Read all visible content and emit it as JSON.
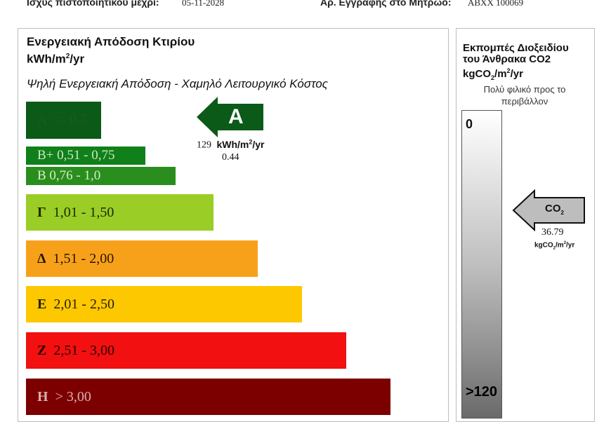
{
  "header": {
    "validity_label": "Ισχύς πιστοποιητικού μέχρι:",
    "validity_value": "05-11-2028",
    "registry_label": "Αρ. Εγγραφής στο Μητρώο:",
    "registry_value": "ABXX 100069"
  },
  "energy": {
    "title_line1": "Ενεργειακή Απόδοση Κτιρίου",
    "title_line2_prefix": "kWh/m",
    "title_line2_sup": "2",
    "title_line2_suffix": "/yr",
    "subtitle": "Ψηλή Ενεργειακή Απόδοση - Χαμηλό Λειτουργικό Κόστος",
    "bands": [
      {
        "letter": "",
        "text": "A <=  0.5",
        "color": "#0b5a18",
        "text_color": "#1e5a1e",
        "fraction": 0.1
      },
      {
        "letter": "",
        "text": "B+ 0,51 - 0,75",
        "color": "#10801a",
        "text_color": "#cfe8c0",
        "fraction": 0.23
      },
      {
        "letter": "",
        "text": "B  0,76 - 1,0",
        "color": "#2a8e1e",
        "text_color": "#d6ecc8",
        "fraction": 0.32
      },
      {
        "letter": "Γ",
        "text": "1,01 - 1,50",
        "color": "#9acd26",
        "text_color": "#1a2a00",
        "fraction": 0.43
      },
      {
        "letter": "Δ",
        "text": "1,51 - 2,00",
        "color": "#f7a11b",
        "text_color": "#2a1500",
        "fraction": 0.56
      },
      {
        "letter": "Ε",
        "text": "2,01 - 2,50",
        "color": "#fdc800",
        "text_color": "#2a2000",
        "fraction": 0.69
      },
      {
        "letter": "Ζ",
        "text": "2,51 - 3,00",
        "color": "#f21010",
        "text_color": "#2a0000",
        "fraction": 0.82
      },
      {
        "letter": "Η",
        "text": "> 3,00",
        "color": "#7d0000",
        "text_color": "#d8b0b0",
        "fraction": 0.95
      }
    ],
    "rating": {
      "letter": "A",
      "arrow_color": "#0b5a18",
      "value": "129",
      "unit_prefix": "kWh/m",
      "unit_sup": "2",
      "unit_suffix": "/yr",
      "ratio": "0.44"
    }
  },
  "co2": {
    "title_line1": "Εκπομπές Διοξειδίου",
    "title_line2": "του Άνθρακα  CO2",
    "title_line3_prefix": "kgCO",
    "title_line3_sub": "2",
    "title_line3_mid": "/m",
    "title_line3_sup": "2",
    "title_line3_suffix": "/yr",
    "note_line1": "Πολύ φιλικό προς το",
    "note_line2": "περιβάλλον",
    "scale_top": "0",
    "scale_bottom": ">120",
    "arrow_label_prefix": "CO",
    "arrow_label_sub": "2",
    "value": "36.79",
    "value_unit": "kgCO2/m2/yr",
    "arrow_color": "#bdbdbd"
  }
}
